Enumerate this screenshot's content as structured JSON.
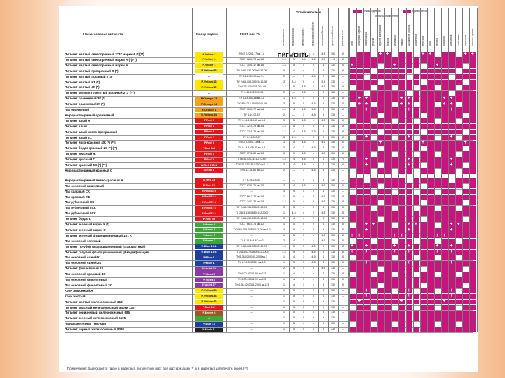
{
  "header": {
    "col_name": "Наименование пигмента",
    "col_ci": "Колор индекс",
    "col_gost": "ГОСТ или ТУ",
    "resistance_group": "Устойчивость к",
    "section_title": "ПИГМЕНТЫ"
  },
  "legend": {
    "recommended": "рекомендуется",
    "applicable": "применяется",
    "area": "область применения"
  },
  "resistance_columns": [
    "маслоемкость",
    "термостойкость",
    "светостойкость",
    "атмосферостойкость",
    "кислотостойкость",
    "щелочестойкость",
    "растворители"
  ],
  "application_columns": [
    "ЛКМ",
    "полиграф. краски",
    "пластмассы",
    "резина",
    "строит. материалы",
    "бумага",
    "керамика",
    "эмали",
    "художеств. краски",
    "косметика",
    "текстиль",
    "кожа",
    "стекло",
    "фарфор",
    "линолеум",
    "шпатлевки",
    "грунтовки",
    "порошк. краски"
  ],
  "colors": {
    "accent": "#c8157e",
    "yellow": "#ffe600",
    "orange": "#f7a31a",
    "red": "#e8161b",
    "green": "#3aa935",
    "blue": "#1d3fa0",
    "violet": "#8e3aa6",
    "brown": "#9a5a1f",
    "black": "#222222"
  },
  "rows": [
    {
      "name": "Пигмент желтый светопрочный 2\"З\" марки А (*)(**)",
      "ci": "P.Yellow 3",
      "color": "#ffe600",
      "gost": "ГОСТ 12294-77 мк.1-6",
      "nums": [
        "1",
        "5",
        "4-5",
        "4",
        "4-5",
        "155",
        "65"
      ],
      "apps": [
        0,
        1,
        0,
        0,
        2,
        2
      ]
    },
    {
      "name": "Пигмент желтый светопрочный марки А (*)(**)",
      "ci": "P.Yellow 3",
      "color": "#ffe600",
      "gost": "ГОСТ 6861-73 мк.1-6",
      "nums": [
        "3-4",
        "5",
        "3-4",
        "1-5",
        "4-5",
        "1-5",
        "65"
      ],
      "apps": [
        0,
        1,
        1,
        0,
        0,
        1
      ]
    },
    {
      "name": "Пигмент желтый светопрочный марки Б",
      "ci": "P.Yellow 1",
      "color": "#ffe600",
      "gost": "ГОСТ 7001-17 мк.1-6",
      "nums": [
        "3-4",
        "5",
        "4",
        "5",
        "4",
        "130",
        "55"
      ],
      "apps": [
        2,
        1,
        1,
        0,
        0,
        1
      ]
    },
    {
      "name": "Пигмент желтый прозрачный О (*)",
      "ci": "P.Yellow 83",
      "color": "#ffe600",
      "gost": "ТУ 2464-030-00209135-09",
      "nums": [
        "5",
        "4",
        "4",
        "5",
        "4",
        "130",
        "55"
      ],
      "apps": [
        1,
        1,
        1,
        0,
        1,
        1
      ]
    },
    {
      "name": "Пигмент желтый прочный 2\"З\"",
      "ci": "—",
      "color": "#ffffff",
      "gost": "ТУ 6-14-955-01 мк.1-4",
      "nums": [
        "2",
        "—",
        "3",
        "4-5",
        "3",
        "130",
        "—"
      ],
      "apps": [
        0,
        1,
        0,
        0,
        0,
        1
      ]
    },
    {
      "name": "Пигмент желтый КТ (*)",
      "ci": "P.Yellow 13",
      "color": "#ffe600",
      "gost": "ТУ 2463-003-05763416-98",
      "nums": [
        "3",
        "3-4",
        "5",
        "4",
        "3-4",
        "130",
        "—"
      ],
      "apps": [
        0,
        1,
        1,
        0,
        0,
        0
      ]
    },
    {
      "name": "Пигмент желтый 4К (*)",
      "ci": "P.Yellow 12",
      "color": "#ffe600",
      "gost": "ТУ 6-36-0203341-274-89",
      "nums": [
        "3-4",
        "5",
        "4-5",
        "4",
        "4-5",
        "150",
        "60"
      ],
      "apps": [
        0,
        1,
        1,
        0,
        0,
        1
      ]
    },
    {
      "name": "Пигмент золотисто-желтый прочный 2\"З\"(**)",
      "ci": "—",
      "color": "#ffffff",
      "gost": "ТУ 6-14-002-001-96",
      "nums": [
        "2",
        "—",
        "4-5",
        "4",
        "4",
        "130",
        "—"
      ],
      "apps": [
        0,
        1,
        0,
        0,
        0,
        1
      ]
    },
    {
      "name": "Пигмент оранжевый 3К (*)",
      "ci": "P.Orange 13",
      "color": "#f7a31a",
      "gost": "ТУ 6-14-193-86 мк.1-6",
      "nums": [
        "1",
        "4-5",
        "4",
        "5",
        "4",
        "130",
        "60"
      ],
      "apps": [
        0,
        2,
        2,
        0,
        1,
        1
      ]
    },
    {
      "name": "Пигмент оранжевый Ж (*)",
      "ci": "P.Orange 34",
      "color": "#f7a31a",
      "gost": "ТУ2465-013-05800142-09",
      "nums": [
        "3",
        "5",
        "5",
        "4-5",
        "5",
        "130",
        "60"
      ],
      "apps": [
        0,
        2,
        2,
        0,
        1,
        1
      ]
    },
    {
      "name": "Лак оранжевый",
      "ci": "P.Orange 1",
      "color": "#f7a31a",
      "gost": "ГОСТ 7001-72 мк.1-6",
      "nums": [
        "3-4",
        "4",
        "4-5",
        "1-5",
        "5",
        "130",
        "55"
      ],
      "apps": [
        0,
        1,
        2,
        0,
        1,
        1
      ]
    },
    {
      "name": "Жирорастворимый оранжевый",
      "ci": "S.Yellow 14",
      "color": "#f7a31a",
      "gost": "ТУ 6-14-02-87",
      "nums": [
        "2",
        "—",
        "3",
        "4-5",
        "3",
        "130",
        "—"
      ],
      "apps": [
        0,
        1,
        0,
        0,
        0,
        1
      ]
    },
    {
      "name": "Пигмент алый Ж",
      "ci": "P.Red 3",
      "color": "#e8161b",
      "gost": "ТУ 6-14-1014-80 мк.1-5",
      "nums": [
        "3",
        "5",
        "4-5",
        "4",
        "4-5",
        "150",
        "60"
      ],
      "apps": [
        0,
        1,
        1,
        0,
        0,
        1
      ]
    },
    {
      "name": "Пигмент алый",
      "ci": "P.Red 3",
      "color": "#e8161b",
      "gost": "ГОСТ 7215-75 мк.1-5",
      "nums": [
        "3-4",
        "5",
        "4",
        "5",
        "4",
        "130",
        "60"
      ],
      "apps": [
        0,
        1,
        1,
        0,
        0,
        1
      ]
    },
    {
      "name": "Пигмент алый кисло-прозрачный",
      "ci": "P.Red 3",
      "color": "#e8161b",
      "gost": "ГОСТ 7215-75 мк.1-5",
      "nums": [
        "3-4",
        "4",
        "4-5",
        "1-5",
        "5",
        "130",
        "55"
      ],
      "apps": [
        0,
        1,
        1,
        0,
        0,
        1
      ]
    },
    {
      "name": "Пигмент алый 2С",
      "ci": "P.Red 2",
      "color": "#e8161b",
      "gost": "ТУ 6-14-020-87",
      "nums": [
        "3",
        "4-5",
        "4",
        "5",
        "4",
        "130",
        "55"
      ],
      "apps": [
        0,
        1,
        2,
        0,
        0,
        1
      ]
    },
    {
      "name": "Пигмент ярко-красный 4Ж (*) (**)",
      "ci": "P.Red 3",
      "color": "#e8161b",
      "gost": "ГОСТ 10006-73 мк.1-2",
      "nums": [
        "3",
        "5",
        "4-5",
        "4",
        "4-5",
        "150",
        "60"
      ],
      "apps": [
        0,
        1,
        1,
        0,
        2,
        1
      ]
    },
    {
      "name": "Пигмент бордо красный 2С (*) (**)",
      "ci": "P.Red 112",
      "color": "#e8161b",
      "gost": "ТУ 6-14-1025-80 мк.1-4",
      "nums": [
        "3",
        "4",
        "3",
        "4-5",
        "3",
        "130",
        "60"
      ],
      "apps": [
        0,
        1,
        1,
        0,
        0,
        1
      ]
    },
    {
      "name": "Пигмент красный Ж",
      "ci": "P.Red 1",
      "color": "#e8161b",
      "gost": "ГОСТ 7708-80 мк.1-5",
      "nums": [
        "3",
        "5",
        "4-5",
        "4",
        "4-5",
        "150",
        "60"
      ],
      "apps": [
        0,
        1,
        1,
        0,
        1,
        1
      ]
    },
    {
      "name": "Пигмент красный С",
      "ci": "P.Red 3",
      "color": "#e8161b",
      "gost": "ТУ6-36-0203341-270-89",
      "nums": [
        "3-4",
        "4",
        "4-5",
        "5",
        "4",
        "130",
        "70"
      ],
      "apps": [
        0,
        1,
        2,
        0,
        1,
        1
      ]
    },
    {
      "name": "Пигмент красный 5С (*) (**)",
      "ci": "A.Red 170:1",
      "color": "#e8161b",
      "gost": "ТУ6-36-0203341-270 мк.1-4",
      "nums": [
        "3",
        "4",
        "4-5",
        "4",
        "4",
        "130",
        "60"
      ],
      "apps": [
        0,
        1,
        2,
        0,
        0,
        1
      ]
    },
    {
      "name": "Жирорастворимый красный С",
      "ci": "S.Red 1",
      "color": "#e8161b",
      "gost": "ТУ 6-14-55-84 мк.1-2",
      "nums": [
        "2",
        "—",
        "3",
        "4-5",
        "3",
        "130",
        "—"
      ],
      "apps": [
        0,
        1,
        0,
        0,
        0,
        0
      ]
    },
    {
      "name": "Жирорастворимый темно-красный Ж",
      "ci": "S.Red 24",
      "color": "#e8161b",
      "gost": "ТУ 6-14-230-81",
      "nums": [
        "—",
        "—",
        "4",
        "5",
        "4",
        "130",
        "—"
      ],
      "apps": [
        0,
        0,
        0,
        0,
        0,
        1
      ]
    },
    {
      "name": "Лак основной вишневый",
      "ci": "P.Red 81",
      "color": "#e8161b",
      "gost": "ГОСТ 6220-76 мк.1-5",
      "nums": [
        "2",
        "4",
        "4-5",
        "4",
        "4-5",
        "150",
        "60"
      ],
      "apps": [
        0,
        1,
        1,
        0,
        0,
        0
      ]
    },
    {
      "name": "Лак красный СК",
      "ci": "P.Red 48:3",
      "color": "#e8161b",
      "gost": "—",
      "nums": [
        "3",
        "5",
        "4",
        "5",
        "4",
        "130",
        "—"
      ],
      "apps": [
        0,
        1,
        1,
        0,
        0,
        1
      ]
    },
    {
      "name": "Лак красный ЖБ",
      "ci": "P.Red 53:1",
      "color": "#e8161b",
      "gost": "ГОСТ 8613-72 мк.1-5",
      "nums": [
        "1",
        "5",
        "4",
        "5",
        "4-5",
        "130",
        "55"
      ],
      "apps": [
        0,
        1,
        1,
        0,
        0,
        1
      ]
    },
    {
      "name": "Лак рубиновый СК",
      "ci": "P.Red 57:1",
      "color": "#e8161b",
      "gost": "ГОСТ 7423-74 мк.1-5",
      "nums": [
        "3-4",
        "5",
        "4",
        "5",
        "4-5",
        "130",
        "55"
      ],
      "apps": [
        0,
        1,
        1,
        0,
        0,
        1
      ]
    },
    {
      "name": "Лак рубиновый 2СК",
      "ci": "P.Red 57:1",
      "color": "#e8161b",
      "gost": "ТУ 2463-136-05800142-09",
      "nums": [
        "3",
        "5",
        "4",
        "5",
        "4",
        "130",
        "55"
      ],
      "apps": [
        0,
        1,
        1,
        0,
        0,
        1
      ]
    },
    {
      "name": "Лак рубиновый 6СК",
      "ci": "P.Red 57:1",
      "color": "#e8161b",
      "gost": "ТУ 2463-116-05800142-2002",
      "nums": [
        "1",
        "4-5",
        "4",
        "5",
        "4-5",
        "130",
        "65"
      ],
      "apps": [
        0,
        1,
        1,
        0,
        0,
        1
      ]
    },
    {
      "name": "Пигмент бордо К",
      "ci": "P.Red 19",
      "color": "#e8161b",
      "gost": "ТУ 2463-009-05763416-98",
      "nums": [
        "3",
        "4",
        "4",
        "5",
        "4",
        "130",
        "60"
      ],
      "apps": [
        0,
        1,
        1,
        0,
        0,
        1
      ]
    },
    {
      "name": "Пигмент зеленый марки К (*)",
      "ci": "P.Green 8",
      "color": "#3aa935",
      "gost": "ГОСТ 6615-74 мк.1-2",
      "nums": [
        "1",
        "4",
        "4",
        "4",
        "4",
        "130",
        "55"
      ],
      "apps": [
        0,
        1,
        2,
        2,
        1,
        1
      ]
    },
    {
      "name": "Пигмент зеленый марки О",
      "ci": "P.Green 8",
      "color": "#3aa935",
      "gost": "ТУ2465-009-05800142-09 мк.1-2",
      "nums": [
        "4",
        "5",
        "4",
        "5",
        "5",
        "130",
        "55"
      ],
      "apps": [
        0,
        1,
        2,
        1,
        1,
        1
      ]
    },
    {
      "name": "Пигмент зеленый фталоцианиновый 101 К",
      "ci": "P.Green 7",
      "color": "#3aa935",
      "gost": "—",
      "nums": [
        "1",
        "5",
        "5",
        "4",
        "4-5",
        "130",
        "55"
      ],
      "apps": [
        2,
        2,
        1,
        1,
        1,
        1
      ]
    },
    {
      "name": "Лак основной зеленый",
      "ci": "P.Green 1",
      "color": "#3aa935",
      "gost": "ТУ 6-14-344-87 мк.2",
      "nums": [
        "2",
        "4",
        "2",
        "4",
        "4-5",
        "130",
        "60"
      ],
      "apps": [
        0,
        1,
        1,
        0,
        0,
        1
      ]
    },
    {
      "name": "Пигмент голубой фталоцианиновый (стандартный)",
      "ci": "P.Blue 15:1",
      "color": "#1d3fa0",
      "gost": "ТУ 2463-064-05800142-09",
      "nums": [
        "4-5",
        "5",
        "5",
        "4-5",
        "5",
        "130",
        "55"
      ],
      "apps": [
        2,
        1,
        2,
        1,
        1,
        1
      ]
    },
    {
      "name": "Пигмент голубой фталоцианиновый (β-модификация)",
      "ci": "P.Blue 15:3",
      "color": "#1d3fa0",
      "gost": "ТУ 2463-027-05800142-2005",
      "nums": [
        "4-5",
        "5",
        "5",
        "4-5",
        "5",
        "130",
        "55"
      ],
      "apps": [
        2,
        1,
        2,
        1,
        1,
        1
      ]
    },
    {
      "name": "Лак основной синий К",
      "ci": "P.Blue 1",
      "color": "#1d3fa0",
      "gost": "ТУ6-36-0203341-2005 мк.1",
      "nums": [
        "1",
        "4",
        "3",
        "4-5",
        "4",
        "130",
        "55"
      ],
      "apps": [
        0,
        1,
        1,
        0,
        0,
        1
      ]
    },
    {
      "name": "Лак основной синий 2К",
      "ci": "P.Blue 1",
      "color": "#1d3fa0",
      "gost": "ТУ 6-14-0203341 мк.1-3",
      "nums": [
        "1",
        "5",
        "3",
        "4-5",
        "4",
        "130",
        "60"
      ],
      "apps": [
        0,
        1,
        2,
        0,
        0,
        1
      ]
    },
    {
      "name": "Пигмент фиолетовый 23",
      "ci": "P.Violet 23",
      "color": "#8e3aa6",
      "gost": "—",
      "nums": [
        "2",
        "5",
        "4",
        "5",
        "4-5",
        "130",
        "—"
      ],
      "apps": [
        0,
        1,
        1,
        0,
        0,
        1
      ]
    },
    {
      "name": "Лак основной красный 4С",
      "ci": "P.Violet 3",
      "color": "#8e3aa6",
      "gost": "ТУ 6-00-00381-92 мк.1-3",
      "nums": [
        "1",
        "4",
        "3",
        "4",
        "4",
        "130",
        "55"
      ],
      "apps": [
        0,
        1,
        1,
        0,
        1,
        1
      ]
    },
    {
      "name": "Лак основной фиолетовый",
      "ci": "P.Violet 3",
      "color": "#8e3aa6",
      "gost": "ТУ 6-00-00381-92 мк.1-3",
      "nums": [
        "1",
        "4",
        "3",
        "4",
        "4",
        "130",
        "55"
      ],
      "apps": [
        0,
        1,
        1,
        0,
        0,
        1
      ]
    },
    {
      "name": "Лак основной фиолетовый 2С",
      "ci": "P.Violet 27",
      "color": "#8e3aa6",
      "gost": "ТУ 6-36-0203341-2005 мк.1-3",
      "nums": [
        "1",
        "4",
        "3",
        "4",
        "4",
        "130",
        "55"
      ],
      "apps": [
        0,
        1,
        1,
        0,
        0,
        1
      ]
    },
    {
      "name": "Крон лимонный Ж",
      "ci": "P.Yellow 34",
      "color": "#ffe600",
      "gost": "—",
      "nums": [
        "1",
        "5",
        "4",
        "5",
        "4",
        "130",
        "—"
      ],
      "apps": [
        0,
        1,
        2,
        0,
        1,
        1
      ]
    },
    {
      "name": "Крон желтый",
      "ci": "P.Yellow 34",
      "color": "#ffe600",
      "gost": "—",
      "nums": [
        "1",
        "5",
        "4",
        "5",
        "4",
        "130",
        "—"
      ],
      "apps": [
        0,
        1,
        2,
        0,
        1,
        1
      ]
    },
    {
      "name": "Пигмент желтый железоокисный 313",
      "ci": "P.Yellow 42",
      "color": "#ffe600",
      "gost": "—",
      "nums": [
        "1",
        "5",
        "5",
        "5",
        "5",
        "130",
        "—"
      ],
      "apps": [
        0,
        2,
        1,
        0,
        1,
        1
      ]
    },
    {
      "name": "Пигмент красный железоокисный марки 130",
      "ci": "P.Red 101",
      "color": "#e8161b",
      "gost": "—",
      "nums": [
        "1",
        "5",
        "5",
        "5",
        "5",
        "130",
        "—"
      ],
      "apps": [
        0,
        1,
        1,
        0,
        1,
        1
      ]
    },
    {
      "name": "Пигмент коричневый железоокисный 686",
      "ci": "P.Brown 6",
      "color": "#9a5a1f",
      "gost": "—",
      "nums": [
        "1",
        "5",
        "5",
        "5",
        "5",
        "130",
        "—"
      ],
      "apps": [
        0,
        1,
        1,
        0,
        1,
        1
      ]
    },
    {
      "name": "Пигмент зеленый железоокисный 5605",
      "ci": "—",
      "color": "#3aa935",
      "gost": "—",
      "nums": [
        "1",
        "5",
        "5",
        "5",
        "5",
        "130",
        "—"
      ],
      "apps": [
        0,
        1,
        1,
        0,
        1,
        1
      ]
    },
    {
      "name": "Лазурь железная \"Милори\"",
      "ci": "P.Blue 27",
      "color": "#1d3fa0",
      "gost": "—",
      "nums": [
        "1",
        "5",
        "4",
        "4",
        "5",
        "130",
        "—"
      ],
      "apps": [
        0,
        1,
        1,
        0,
        1,
        1
      ]
    },
    {
      "name": "Пигмент черный железоокисный 9330",
      "ci": "P.Black 11",
      "color": "#222222",
      "gost": "—",
      "nums": [
        "1",
        "5",
        "5",
        "5",
        "5",
        "130",
        "—"
      ],
      "apps": [
        0,
        1,
        1,
        0,
        1,
        1
      ]
    }
  ],
  "footnote": "Примечание: Выпускаются также в виде паст, пигментных паст для пастеризации (*) и в виде паст для печати обоев (**)"
}
